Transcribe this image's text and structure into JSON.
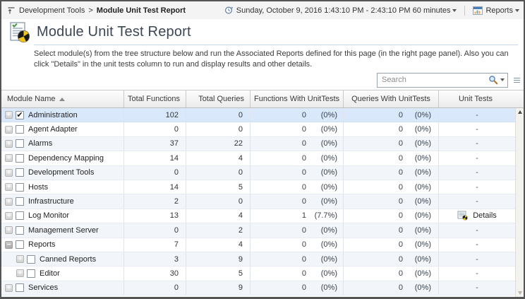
{
  "topbar": {
    "breadcrumb": {
      "parent": "Development Tools",
      "separator": ">",
      "current": "Module Unit Test Report"
    },
    "time_range": "Sunday, October 9, 2016 1:43:10 PM - 2:43:10 PM 60 minutes",
    "reports_label": "Reports"
  },
  "header": {
    "title": "Module Unit Test Report",
    "description": "Select module(s) from the tree structure below and run the Associated Reports defined for this page (in the right page panel). Also you can click \"Details\" in the unit tests column to run and display results and other details."
  },
  "search": {
    "placeholder": "Search"
  },
  "table": {
    "columns": [
      "Module Name",
      "Total Functions",
      "Total Queries",
      "Functions With UnitTests",
      "Queries With UnitTests",
      "Unit Tests"
    ],
    "sort_column": "Module Name",
    "sort_direction": "ascending",
    "rows": [
      {
        "name": "Administration",
        "indent": 0,
        "expander": "plus",
        "checked": true,
        "selected": true,
        "total_functions": "102",
        "total_queries": "0",
        "func_ut": "0",
        "func_ut_pct": "(0%)",
        "query_ut": "0",
        "query_ut_pct": "(0%)",
        "unit_tests": "-"
      },
      {
        "name": "Agent Adapter",
        "indent": 0,
        "expander": "plus",
        "checked": false,
        "selected": false,
        "total_functions": "0",
        "total_queries": "0",
        "func_ut": "0",
        "func_ut_pct": "(0%)",
        "query_ut": "0",
        "query_ut_pct": "(0%)",
        "unit_tests": "-"
      },
      {
        "name": "Alarms",
        "indent": 0,
        "expander": "plus",
        "checked": false,
        "selected": false,
        "total_functions": "37",
        "total_queries": "22",
        "func_ut": "0",
        "func_ut_pct": "(0%)",
        "query_ut": "0",
        "query_ut_pct": "(0%)",
        "unit_tests": "-"
      },
      {
        "name": "Dependency Mapping",
        "indent": 0,
        "expander": "plus",
        "checked": false,
        "selected": false,
        "total_functions": "14",
        "total_queries": "4",
        "func_ut": "0",
        "func_ut_pct": "(0%)",
        "query_ut": "0",
        "query_ut_pct": "(0%)",
        "unit_tests": "-"
      },
      {
        "name": "Development Tools",
        "indent": 0,
        "expander": "plus",
        "checked": false,
        "selected": false,
        "total_functions": "0",
        "total_queries": "0",
        "func_ut": "0",
        "func_ut_pct": "(0%)",
        "query_ut": "0",
        "query_ut_pct": "(0%)",
        "unit_tests": "-"
      },
      {
        "name": "Hosts",
        "indent": 0,
        "expander": "plus",
        "checked": false,
        "selected": false,
        "total_functions": "14",
        "total_queries": "5",
        "func_ut": "0",
        "func_ut_pct": "(0%)",
        "query_ut": "0",
        "query_ut_pct": "(0%)",
        "unit_tests": "-"
      },
      {
        "name": "Infrastructure",
        "indent": 0,
        "expander": "plus",
        "checked": false,
        "selected": false,
        "total_functions": "2",
        "total_queries": "0",
        "func_ut": "0",
        "func_ut_pct": "(0%)",
        "query_ut": "0",
        "query_ut_pct": "(0%)",
        "unit_tests": "-"
      },
      {
        "name": "Log Monitor",
        "indent": 0,
        "expander": "plus",
        "checked": false,
        "selected": false,
        "total_functions": "13",
        "total_queries": "4",
        "func_ut": "1",
        "func_ut_pct": "(7.7%)",
        "query_ut": "0",
        "query_ut_pct": "(0%)",
        "unit_tests": "Details"
      },
      {
        "name": "Management Server",
        "indent": 0,
        "expander": "plus",
        "checked": false,
        "selected": false,
        "total_functions": "0",
        "total_queries": "2",
        "func_ut": "0",
        "func_ut_pct": "(0%)",
        "query_ut": "0",
        "query_ut_pct": "(0%)",
        "unit_tests": "-"
      },
      {
        "name": "Reports",
        "indent": 0,
        "expander": "minus",
        "checked": false,
        "selected": false,
        "total_functions": "7",
        "total_queries": "4",
        "func_ut": "0",
        "func_ut_pct": "(0%)",
        "query_ut": "0",
        "query_ut_pct": "(0%)",
        "unit_tests": "-"
      },
      {
        "name": "Canned Reports",
        "indent": 1,
        "expander": "plus",
        "checked": false,
        "selected": false,
        "total_functions": "3",
        "total_queries": "9",
        "func_ut": "0",
        "func_ut_pct": "(0%)",
        "query_ut": "0",
        "query_ut_pct": "(0%)",
        "unit_tests": "-"
      },
      {
        "name": "Editor",
        "indent": 1,
        "expander": "plus",
        "checked": false,
        "selected": false,
        "total_functions": "30",
        "total_queries": "5",
        "func_ut": "0",
        "func_ut_pct": "(0%)",
        "query_ut": "0",
        "query_ut_pct": "(0%)",
        "unit_tests": "-"
      },
      {
        "name": "Services",
        "indent": 0,
        "expander": "plus",
        "checked": false,
        "selected": false,
        "total_functions": "0",
        "total_queries": "9",
        "func_ut": "0",
        "func_ut_pct": "(0%)",
        "query_ut": "0",
        "query_ut_pct": "(0%)",
        "unit_tests": "-"
      }
    ]
  }
}
